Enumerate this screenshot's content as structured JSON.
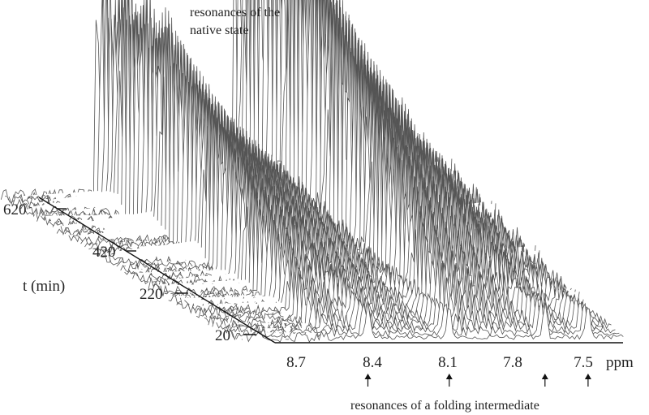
{
  "chart_data": {
    "type": "waterfall",
    "annotations": {
      "native": [
        "resonances of the",
        "native state"
      ],
      "intermediate": "resonances of a folding intermediate"
    },
    "x_axis": {
      "unit": "ppm",
      "ticks": [
        "8.7",
        "8.4",
        "8.1",
        "7.8",
        "7.5"
      ],
      "reversed": true,
      "xlim": [
        8.95,
        7.25
      ]
    },
    "depth_axis": {
      "label": "t (min)",
      "ticks": [
        "20",
        "220",
        "420",
        "620"
      ],
      "range": [
        20,
        660
      ]
    },
    "trace_count": 60,
    "native_peak_positions_ppm": [
      8.55,
      7.98
    ],
    "intermediate_peak_positions_ppm": [
      8.4,
      8.06,
      7.66,
      7.48
    ],
    "colors": {
      "trace": "#555555",
      "axis": "#111111",
      "arrow": "#111111"
    }
  }
}
